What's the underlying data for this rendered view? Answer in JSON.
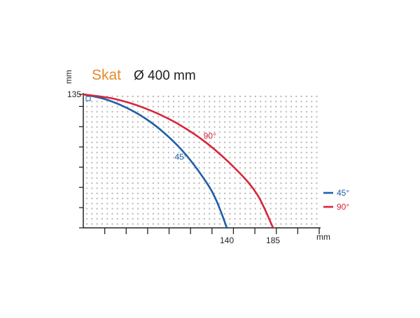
{
  "chart_data": {
    "type": "line",
    "title_brand": "Skat",
    "title_rest": "Ø 400 mm",
    "xlabel": "mm",
    "ylabel": "mm",
    "xlim": [
      0,
      230
    ],
    "ylim": [
      0,
      135
    ],
    "x_ticks_labeled": [
      140,
      185
    ],
    "y_ticks_labeled": [
      135
    ],
    "grid": "dotted",
    "legend_position": "right",
    "series": [
      {
        "name": "45°",
        "color": "#1f5fa8",
        "x": [
          0,
          20,
          40,
          60,
          80,
          100,
          120,
          130,
          140
        ],
        "y": [
          135,
          130.5,
          122.5,
          111,
          95,
          74,
          46,
          27,
          0
        ]
      },
      {
        "name": "90°",
        "color": "#d7263d",
        "x": [
          0,
          30,
          60,
          90,
          120,
          150,
          170,
          185
        ],
        "y": [
          135,
          130.5,
          121,
          106.5,
          86,
          58,
          33,
          0
        ]
      }
    ],
    "legend": [
      {
        "label": "45°",
        "color": "#1f5fa8"
      },
      {
        "label": "90°",
        "color": "#d7263d"
      }
    ]
  }
}
